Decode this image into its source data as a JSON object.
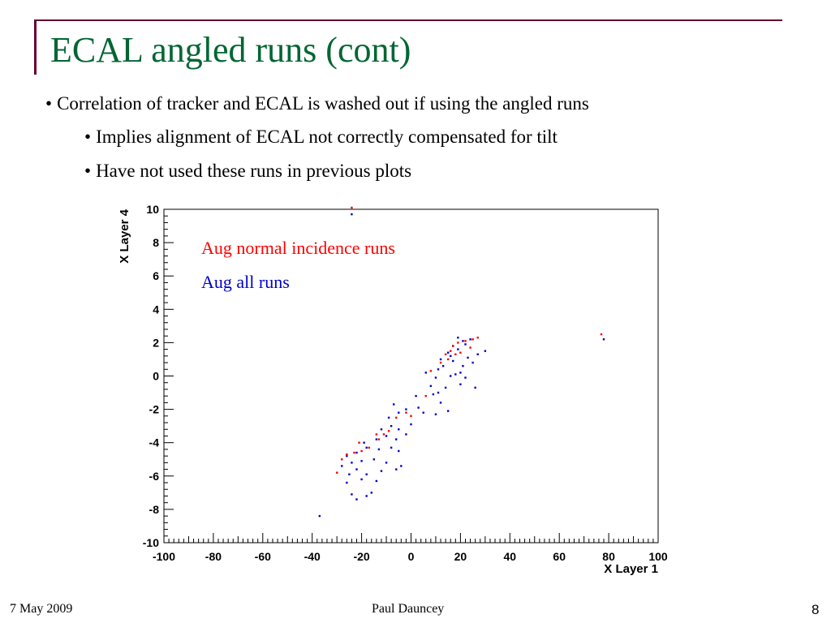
{
  "slide": {
    "title": "ECAL angled runs (cont)",
    "bullets": [
      "Correlation of tracker and ECAL is washed out if using the angled runs",
      "Implies alignment of ECAL not correctly compensated for tilt",
      "Have not used these runs in previous plots"
    ],
    "bullet_glyph": "•",
    "footer": {
      "date": "7 May 2009",
      "author": "Paul Dauncey",
      "page": "8"
    }
  },
  "colors": {
    "title": "#006633",
    "accent_line": "#660033",
    "series_normal": "#ff0000",
    "series_all": "#0000cc"
  },
  "chart_data": {
    "type": "scatter",
    "title": "",
    "xlabel": "X Layer 1",
    "ylabel": "X Layer 4",
    "xlim": [
      -100,
      100
    ],
    "ylim": [
      -10,
      10
    ],
    "xticks": [
      -100,
      -80,
      -60,
      -40,
      -20,
      0,
      20,
      40,
      60,
      80,
      100
    ],
    "yticks": [
      -10,
      -8,
      -6,
      -4,
      -2,
      0,
      2,
      4,
      6,
      8,
      10
    ],
    "grid": false,
    "legend_position": "top-left",
    "series": [
      {
        "name": "Aug all runs",
        "color": "#0000cc",
        "points": [
          [
            -37,
            -8.4
          ],
          [
            -24,
            9.7
          ],
          [
            -24,
            -7.1
          ],
          [
            -22,
            -7.4
          ],
          [
            -18,
            -7.2
          ],
          [
            -16,
            -7.0
          ],
          [
            -26,
            -6.4
          ],
          [
            -20,
            -6.2
          ],
          [
            -14,
            -6.3
          ],
          [
            -25,
            -5.9
          ],
          [
            -22,
            -5.6
          ],
          [
            -18,
            -5.9
          ],
          [
            -12,
            -5.7
          ],
          [
            -6,
            -5.6
          ],
          [
            -28,
            -5.4
          ],
          [
            -24,
            -5.2
          ],
          [
            -20,
            -5.1
          ],
          [
            -15,
            -5.0
          ],
          [
            -10,
            -5.2
          ],
          [
            -4,
            -5.4
          ],
          [
            -26,
            -4.8
          ],
          [
            -22,
            -4.6
          ],
          [
            -18,
            -4.3
          ],
          [
            -13,
            -4.4
          ],
          [
            -8,
            -4.3
          ],
          [
            -5,
            -4.5
          ],
          [
            -19,
            -4.0
          ],
          [
            -14,
            -3.8
          ],
          [
            -10,
            -3.6
          ],
          [
            -6,
            -3.8
          ],
          [
            -2,
            -3.5
          ],
          [
            -12,
            -3.2
          ],
          [
            -8,
            -3.0
          ],
          [
            -5,
            -3.2
          ],
          [
            0,
            -2.9
          ],
          [
            -9,
            -2.5
          ],
          [
            -5,
            -2.2
          ],
          [
            -2,
            -2.0
          ],
          [
            3,
            -1.9
          ],
          [
            5,
            -2.2
          ],
          [
            -7,
            -1.7
          ],
          [
            2,
            -1.2
          ],
          [
            9,
            -1.1
          ],
          [
            11,
            -1.0
          ],
          [
            10,
            -2.3
          ],
          [
            15,
            -2.1
          ],
          [
            12,
            -1.6
          ],
          [
            8,
            -0.6
          ],
          [
            14,
            -0.7
          ],
          [
            20,
            -0.5
          ],
          [
            10,
            -0.1
          ],
          [
            16,
            0.0
          ],
          [
            18,
            0.1
          ],
          [
            20,
            0.2
          ],
          [
            22,
            -0.1
          ],
          [
            26,
            -0.7
          ],
          [
            6,
            0.2
          ],
          [
            11,
            0.4
          ],
          [
            13,
            0.6
          ],
          [
            21,
            0.6
          ],
          [
            25,
            0.8
          ],
          [
            12,
            1.0
          ],
          [
            17,
            0.9
          ],
          [
            23,
            1.1
          ],
          [
            27,
            1.3
          ],
          [
            30,
            1.5
          ],
          [
            15,
            1.4
          ],
          [
            19,
            1.6
          ],
          [
            22,
            1.9
          ],
          [
            17,
            1.8
          ],
          [
            21,
            2.1
          ],
          [
            24,
            2.2
          ],
          [
            19,
            2.3
          ],
          [
            78,
            2.2
          ],
          [
            16,
            1.2
          ]
        ]
      },
      {
        "name": "Aug normal incidence runs",
        "color": "#ff0000",
        "points": [
          [
            -24,
            10.1
          ],
          [
            -30,
            -5.8
          ],
          [
            -28,
            -5.0
          ],
          [
            -26,
            -4.7
          ],
          [
            -23,
            -4.6
          ],
          [
            -20,
            -4.5
          ],
          [
            -17,
            -4.3
          ],
          [
            -21,
            -4.0
          ],
          [
            -13,
            -3.8
          ],
          [
            -11,
            -3.5
          ],
          [
            -9,
            -3.3
          ],
          [
            -14,
            -3.5
          ],
          [
            -2,
            -2.2
          ],
          [
            -6,
            -2.5
          ],
          [
            0,
            -2.4
          ],
          [
            6,
            -1.2
          ],
          [
            8,
            0.3
          ],
          [
            12,
            0.8
          ],
          [
            15,
            1.0
          ],
          [
            14,
            1.3
          ],
          [
            16,
            1.5
          ],
          [
            18,
            1.3
          ],
          [
            20,
            1.4
          ],
          [
            17,
            1.8
          ],
          [
            19,
            2.0
          ],
          [
            22,
            2.1
          ],
          [
            25,
            2.2
          ],
          [
            27,
            2.3
          ],
          [
            24,
            1.7
          ],
          [
            77,
            2.5
          ]
        ]
      }
    ]
  }
}
